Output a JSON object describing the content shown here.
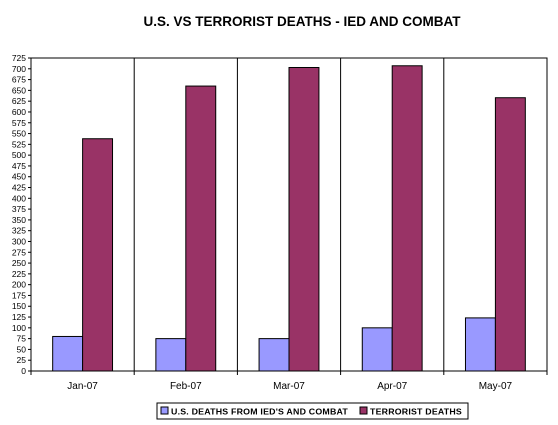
{
  "chart_data": {
    "type": "bar",
    "title": "U.S. VS TERRORIST DEATHS - IED AND COMBAT",
    "categories": [
      "Jan-07",
      "Feb-07",
      "Mar-07",
      "Apr-07",
      "May-07"
    ],
    "series": [
      {
        "name": "U.S. DEATHS FROM IED'S AND COMBAT",
        "color": "#9999ff",
        "values": [
          80,
          75,
          75,
          100,
          123
        ]
      },
      {
        "name": "TERRORIST DEATHS",
        "color": "#993366",
        "values": [
          538,
          660,
          703,
          707,
          633
        ]
      }
    ],
    "ylim": [
      0,
      725
    ],
    "ytick_step": 25,
    "yticks": [
      "0",
      "25",
      "50",
      "75",
      "100",
      "125",
      "150",
      "175",
      "200",
      "225",
      "250",
      "275",
      "300",
      "325",
      "350",
      "375",
      "400",
      "425",
      "450",
      "475",
      "500",
      "525",
      "550",
      "575",
      "600",
      "625",
      "650",
      "675",
      "700",
      "725"
    ],
    "grid": "vertical category separators",
    "legend": "bottom",
    "xlabel": "",
    "ylabel": ""
  }
}
